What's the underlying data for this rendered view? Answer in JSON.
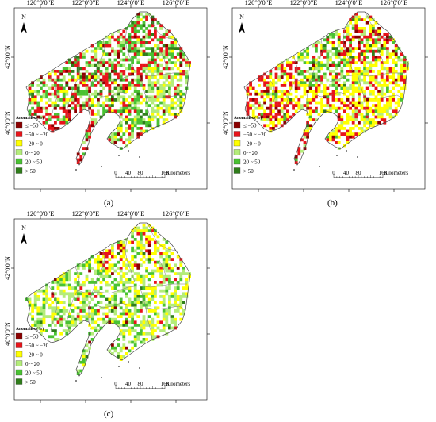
{
  "panels": [
    {
      "id": "a",
      "label": "(a)",
      "lon_ticks": [
        "120°0'0\"E",
        "122°0'0\"E",
        "124°0'0\"E",
        "126°0'0\"E"
      ],
      "lat_ticks": [
        "42°0'0\"N",
        "40°0'0\"N"
      ]
    },
    {
      "id": "b",
      "label": "(b)",
      "lon_ticks": [
        "120°0'0\"E",
        "122°0'0\"E",
        "124°0'0\"E",
        "126°0'0\"E"
      ],
      "lat_ticks": [
        "42°0'0\"N",
        "40°0'0\"N"
      ]
    },
    {
      "id": "c",
      "label": "(c)",
      "lon_ticks": [
        "120°0'0\"E",
        "122°0'0\"E",
        "124°0'0\"E",
        "126°0'0\"E"
      ],
      "lat_ticks": [
        "42°0'0\"N",
        "40°0'0\"N"
      ]
    }
  ],
  "legend": {
    "title": "Anomalies (%)",
    "items": [
      {
        "label": "≤ −50",
        "color": "#8b0000"
      },
      {
        "label": "−50 ~ −20",
        "color": "#e8141a"
      },
      {
        "label": "−20 ~ 0",
        "color": "#ffff00"
      },
      {
        "label": "0 ~ 20",
        "color": "#b4ec7a"
      },
      {
        "label": "20 ~ 50",
        "color": "#49c232"
      },
      {
        "label": "> 50",
        "color": "#2f7d1a"
      }
    ]
  },
  "scalebar": {
    "ticks": [
      "0",
      "40",
      "80",
      "160"
    ],
    "unit": "Kilometers"
  },
  "north_arrow": "N"
}
